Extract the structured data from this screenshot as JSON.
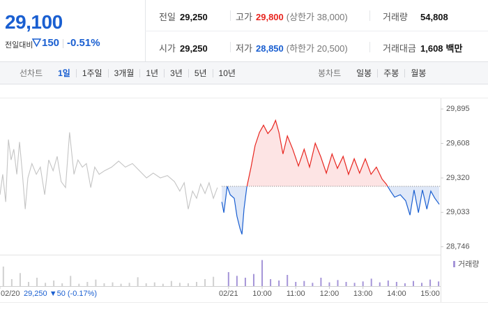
{
  "quote": {
    "price": "29,100",
    "change_label": "전일대비",
    "change": "150",
    "change_rate": "-0.51%"
  },
  "stats": [
    [
      {
        "label": "전일",
        "value": "29,250"
      },
      {
        "label": "고가",
        "value": "29,800",
        "note": "(상한가 38,000)",
        "color": "#e8251f"
      },
      {
        "label": "거래량",
        "value": "54,808"
      }
    ],
    [
      {
        "label": "시가",
        "value": "29,250"
      },
      {
        "label": "저가",
        "value": "28,850",
        "note": "(하한가 20,500)",
        "color": "#1a5fd1"
      },
      {
        "label": "거래대금",
        "value": "1,608",
        "unit": "백만"
      }
    ]
  ],
  "tabs": {
    "line_label": "선차트",
    "line_periods": [
      "1일",
      "1주일",
      "3개월",
      "1년",
      "3년",
      "5년",
      "10년"
    ],
    "candle_label": "봉차트",
    "candle_periods": [
      "일봉",
      "주봉",
      "월봉"
    ]
  },
  "chart_data": {
    "type": "line",
    "xlim": [
      -0.3,
      13.1
    ],
    "ylim": [
      28680,
      29960
    ],
    "yticks": [
      {
        "value": 28746,
        "label": "28,746"
      },
      {
        "value": 29033,
        "label": "29,033"
      },
      {
        "value": 29320,
        "label": "29,320"
      },
      {
        "value": 29608,
        "label": "29,608"
      },
      {
        "value": 29895,
        "label": "29,895"
      }
    ],
    "xticks": [
      {
        "value": -0.3,
        "label": "02/20"
      },
      {
        "value": 6.5,
        "label": "02/21"
      },
      {
        "value": 7.5,
        "label": "10:00"
      },
      {
        "value": 8.5,
        "label": "11:00"
      },
      {
        "value": 9.5,
        "label": "12:00"
      },
      {
        "value": 10.5,
        "label": "13:00"
      },
      {
        "value": 11.5,
        "label": "14:00"
      },
      {
        "value": 12.5,
        "label": "15:00"
      }
    ],
    "baseline": 29250,
    "annotation": "29,250 ▼50 (-0.17%)",
    "series": [
      {
        "color": "#c4c4c4",
        "x": [
          -0.3,
          -0.22,
          -0.13,
          -0.05,
          0.03,
          0.11,
          0.2,
          0.28,
          0.36,
          0.45,
          0.53,
          0.65,
          0.78,
          0.9,
          1.03,
          1.15,
          1.28,
          1.4,
          1.52,
          1.65,
          1.77,
          1.9,
          2.02,
          2.15,
          2.27,
          2.4,
          2.52,
          2.65,
          2.81,
          3.02,
          3.23,
          3.43,
          3.64,
          3.85,
          4.06,
          4.26,
          4.47,
          4.68,
          4.89,
          5.05,
          5.18,
          5.3,
          5.43,
          5.55,
          5.67,
          5.8,
          5.92,
          6.05,
          6.17
        ],
        "values": [
          29180,
          29350,
          29120,
          29640,
          29470,
          29560,
          29350,
          29620,
          29380,
          29060,
          29320,
          29440,
          29350,
          29410,
          29180,
          29470,
          29380,
          29500,
          29290,
          29240,
          29700,
          29350,
          29470,
          29410,
          29440,
          29240,
          29410,
          29350,
          29380,
          29410,
          29460,
          29410,
          29440,
          29380,
          29320,
          29360,
          29320,
          29340,
          29290,
          29210,
          29280,
          29060,
          29210,
          29150,
          29270,
          29190,
          29280,
          29150,
          29240
        ]
      },
      {
        "color": "#e8251f",
        "color_below": "#1a5fd1",
        "fill": "#fde4e4",
        "fill_below": "#dfe8f8",
        "x": [
          6.3,
          6.36,
          6.46,
          6.55,
          6.67,
          6.75,
          6.84,
          6.9,
          6.96,
          7.04,
          7.17,
          7.29,
          7.42,
          7.54,
          7.67,
          7.79,
          7.9,
          8.0,
          8.12,
          8.25,
          8.41,
          8.58,
          8.75,
          8.91,
          9.08,
          9.24,
          9.41,
          9.58,
          9.74,
          9.91,
          10.07,
          10.24,
          10.4,
          10.57,
          10.74,
          10.9,
          11.07,
          11.19,
          11.32,
          11.44,
          11.61,
          11.77,
          11.9,
          12.02,
          12.15,
          12.27,
          12.4,
          12.52,
          12.64,
          12.77
        ],
        "values": [
          29120,
          29030,
          29250,
          29180,
          29150,
          29000,
          28900,
          28850,
          29060,
          29240,
          29410,
          29590,
          29700,
          29760,
          29690,
          29730,
          29800,
          29700,
          29520,
          29670,
          29560,
          29420,
          29560,
          29410,
          29610,
          29500,
          29360,
          29520,
          29400,
          29500,
          29350,
          29480,
          29360,
          29480,
          29350,
          29410,
          29310,
          29270,
          29210,
          29160,
          29180,
          29130,
          29010,
          29220,
          29030,
          29220,
          29060,
          29210,
          29150,
          29100
        ]
      }
    ],
    "volume": {
      "ylim": [
        0,
        6000
      ],
      "series": [
        {
          "color": "#d0d0d0",
          "x": [
            -0.2,
            0.05,
            0.3,
            0.55,
            0.8,
            1.05,
            1.3,
            1.55,
            1.8,
            2.05,
            2.3,
            2.55,
            2.8,
            3.05,
            3.3,
            3.55,
            3.8,
            4.05,
            4.3,
            4.55,
            4.8,
            5.05,
            5.3,
            5.55,
            5.8,
            6.05
          ],
          "values": [
            4200,
            1500,
            2800,
            900,
            1800,
            700,
            1200,
            600,
            2200,
            500,
            900,
            1400,
            600,
            800,
            500,
            700,
            1900,
            600,
            800,
            500,
            1100,
            700,
            600,
            900,
            1500,
            2000
          ]
        },
        {
          "name": "거래량",
          "color": "#a595d8",
          "x": [
            6.5,
            6.75,
            7.0,
            7.25,
            7.5,
            7.75,
            8.0,
            8.25,
            8.5,
            8.75,
            9.0,
            9.25,
            9.5,
            9.75,
            10.0,
            10.25,
            10.5,
            10.75,
            11.0,
            11.25,
            11.5,
            11.75,
            12.0,
            12.25,
            12.5,
            12.75
          ],
          "values": [
            3000,
            2200,
            1800,
            2600,
            5600,
            1500,
            1200,
            2400,
            900,
            1100,
            700,
            1800,
            800,
            1300,
            900,
            700,
            1000,
            1600,
            800,
            1200,
            900,
            600,
            1100,
            700,
            1400,
            1000
          ]
        }
      ]
    }
  }
}
